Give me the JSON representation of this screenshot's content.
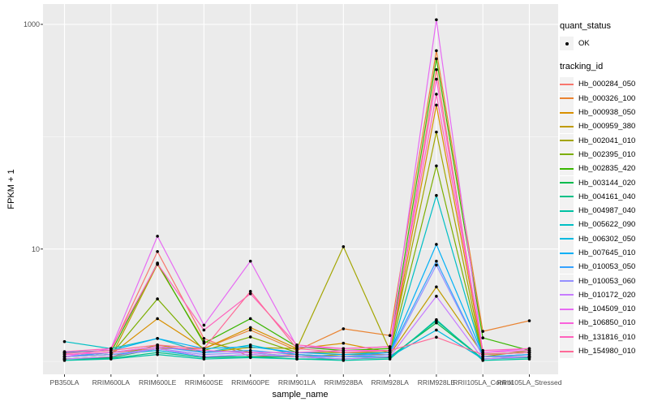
{
  "chart_data": {
    "type": "line",
    "title": "",
    "xlabel": "sample_name",
    "ylabel": "FPKM + 1",
    "y_scale": "log10",
    "y_tick_labels": [
      "1000",
      "10"
    ],
    "y_ticks": [
      1000,
      10
    ],
    "y_minor_gridlines": [
      100,
      1
    ],
    "ylim": [
      0.77,
      1400
    ],
    "grid": "on",
    "panel_background": "#EBEBEB",
    "gridline_color": "#FFFFFF",
    "point_color": "#000000",
    "legend_position": "right",
    "categories": [
      "PB350LA",
      "RRIM600LA",
      "RRIM600LE",
      "RRIM600SE",
      "RRIM600PE",
      "RRIM901LA",
      "RRIM928BA",
      "RRIM928LA",
      "RRIM928LE",
      "RRII105LA_Control",
      "RRII105LA_Stressed"
    ],
    "series": [
      {
        "name": "Hb_000284_050",
        "color": "#F8766D",
        "values": [
          1.2,
          1.25,
          9.5,
          1.6,
          1.1,
          1.15,
          1.1,
          1.1,
          395,
          1.1,
          1.1
        ]
      },
      {
        "name": "Hb_000326_100",
        "color": "#EA8331",
        "values": [
          1.15,
          1.2,
          1.3,
          1.3,
          1.9,
          1.25,
          1.95,
          1.7,
          583,
          1.85,
          2.3
        ]
      },
      {
        "name": "Hb_000938_050",
        "color": "#D89000",
        "values": [
          1.1,
          1.15,
          2.4,
          1.3,
          2.0,
          1.3,
          1.45,
          1.2,
          191,
          1.15,
          1.2
        ]
      },
      {
        "name": "Hb_000959_380",
        "color": "#C09B00",
        "values": [
          1.05,
          1.1,
          7.3,
          1.5,
          1.2,
          1.1,
          1.15,
          1.15,
          4.6,
          1.16,
          1.2
        ]
      },
      {
        "name": "Hb_002041_010",
        "color": "#A3A500",
        "values": [
          1.05,
          1.1,
          1.4,
          1.2,
          1.33,
          1.3,
          10.5,
          1.25,
          110,
          1.1,
          1.25
        ]
      },
      {
        "name": "Hb_002395_010",
        "color": "#7CAE00",
        "values": [
          1.1,
          1.15,
          3.6,
          1.25,
          1.65,
          1.2,
          1.2,
          1.2,
          55,
          1.1,
          1.1
        ]
      },
      {
        "name": "Hb_002835_420",
        "color": "#39B600",
        "values": [
          1.1,
          1.2,
          7.5,
          1.45,
          2.4,
          1.35,
          1.25,
          1.3,
          494,
          1.62,
          1.25
        ]
      },
      {
        "name": "Hb_003144_020",
        "color": "#00BB4E",
        "values": [
          1.05,
          1.08,
          1.3,
          1.1,
          1.1,
          1.1,
          1.05,
          1.1,
          2.2,
          1.05,
          1.1
        ]
      },
      {
        "name": "Hb_004161_040",
        "color": "#00C087",
        "values": [
          1.05,
          1.06,
          1.2,
          1.08,
          1.1,
          1.05,
          1.05,
          1.08,
          2.3,
          1.05,
          1.08
        ]
      },
      {
        "name": "Hb_004987_040",
        "color": "#00C1A3",
        "values": [
          1.02,
          1.05,
          1.15,
          1.05,
          1.08,
          1.05,
          1.02,
          1.05,
          2.35,
          1.02,
          1.05
        ]
      },
      {
        "name": "Hb_005622_090",
        "color": "#00BFC4",
        "values": [
          1.5,
          1.3,
          1.6,
          1.2,
          1.4,
          1.15,
          1.1,
          1.15,
          30,
          1.1,
          1.15
        ]
      },
      {
        "name": "Hb_006302_050",
        "color": "#00BAE0",
        "values": [
          1.1,
          1.15,
          1.25,
          1.1,
          1.15,
          1.1,
          1.1,
          1.1,
          1.9,
          1.05,
          1.1
        ]
      },
      {
        "name": "Hb_007645_010",
        "color": "#00B0F6",
        "values": [
          1.2,
          1.25,
          1.6,
          1.3,
          1.35,
          1.2,
          1.15,
          1.2,
          11,
          1.15,
          1.2
        ]
      },
      {
        "name": "Hb_010053_050",
        "color": "#35A2FF",
        "values": [
          1.1,
          1.2,
          1.35,
          1.2,
          1.25,
          1.15,
          1.1,
          1.2,
          7.8,
          1.1,
          1.15
        ]
      },
      {
        "name": "Hb_010053_060",
        "color": "#9590FF",
        "values": [
          1.1,
          1.15,
          1.3,
          1.15,
          1.2,
          1.1,
          1.1,
          1.15,
          7.2,
          1.1,
          1.1
        ]
      },
      {
        "name": "Hb_010172_020",
        "color": "#C77CFF",
        "values": [
          1.05,
          1.1,
          1.3,
          1.1,
          1.15,
          1.1,
          1.05,
          1.1,
          3.8,
          1.05,
          1.1
        ]
      },
      {
        "name": "Hb_104509_010",
        "color": "#E76BF3",
        "values": [
          1.1,
          1.3,
          13,
          2.1,
          7.8,
          1.35,
          1.3,
          1.35,
          1100,
          1.2,
          1.3
        ]
      },
      {
        "name": "Hb_106850_010",
        "color": "#FA62DB",
        "values": [
          1.15,
          1.2,
          1.35,
          1.25,
          1.2,
          1.2,
          1.25,
          1.25,
          325,
          1.2,
          1.25
        ]
      },
      {
        "name": "Hb_131816_010",
        "color": "#FF62BC",
        "values": [
          1.22,
          1.3,
          7.4,
          1.9,
          4.0,
          1.4,
          1.3,
          1.35,
          239,
          1.25,
          1.3
        ]
      },
      {
        "name": "Hb_154980_010",
        "color": "#FF6A98",
        "values": [
          1.18,
          1.25,
          1.4,
          1.3,
          4.2,
          1.3,
          1.2,
          1.25,
          1.64,
          1.15,
          1.2
        ]
      }
    ]
  },
  "legend": {
    "quant_status": {
      "title": "quant_status",
      "items": [
        {
          "label": "OK",
          "marker": "black-point"
        }
      ]
    },
    "tracking_id": {
      "title": "tracking_id"
    }
  }
}
